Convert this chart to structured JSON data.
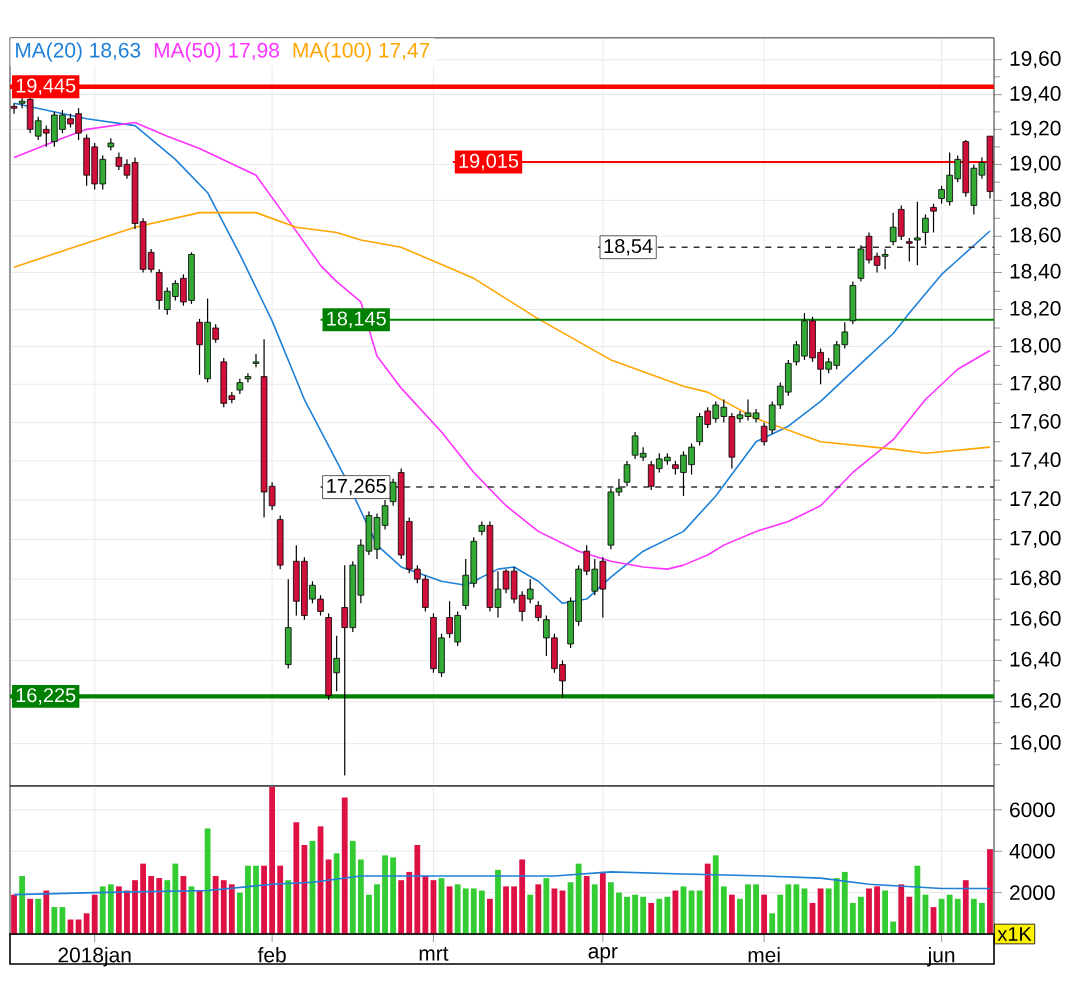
{
  "chart_data": [
    {
      "type": "candlestick",
      "categories": [
        null,
        null,
        null,
        null,
        null,
        null,
        null,
        null,
        null,
        null,
        null,
        null,
        null,
        null,
        null,
        null,
        null,
        null,
        null,
        null,
        null,
        null,
        null,
        null,
        null,
        null,
        null,
        null,
        null,
        null,
        null,
        null,
        null,
        null,
        null,
        null,
        null,
        null,
        null,
        null,
        null,
        null,
        null,
        null,
        null,
        null,
        null,
        null,
        null,
        null,
        null,
        null,
        null,
        null,
        null,
        null,
        null,
        null,
        null,
        null,
        null,
        null,
        null,
        null,
        null,
        null,
        null,
        null,
        null,
        null,
        null,
        null,
        null,
        null,
        null,
        null,
        null,
        null,
        null,
        null,
        null,
        null,
        null,
        null,
        null,
        null,
        null,
        null,
        null,
        null,
        null,
        null,
        null,
        null,
        null,
        null,
        null,
        null,
        null,
        null,
        null,
        null,
        null,
        null,
        null,
        null,
        null,
        null,
        null,
        null,
        null,
        null,
        null,
        null,
        null,
        null,
        null,
        null,
        null,
        null,
        null,
        null
      ],
      "ohlc": [
        [
          19.33,
          19.35,
          19.29,
          19.32
        ],
        [
          19.35,
          19.38,
          19.32,
          19.36
        ],
        [
          19.37,
          19.39,
          19.18,
          19.2
        ],
        [
          19.16,
          19.27,
          19.14,
          19.25
        ],
        [
          19.2,
          19.22,
          19.1,
          19.18
        ],
        [
          19.13,
          19.3,
          19.1,
          19.28
        ],
        [
          19.2,
          19.31,
          19.18,
          19.28
        ],
        [
          19.26,
          19.29,
          19.21,
          19.23
        ],
        [
          19.29,
          19.32,
          19.14,
          19.18
        ],
        [
          19.15,
          19.17,
          18.88,
          18.94
        ],
        [
          19.1,
          19.12,
          18.86,
          18.89
        ],
        [
          18.89,
          19.05,
          18.86,
          19.03
        ],
        [
          19.1,
          19.15,
          19.08,
          19.12
        ],
        [
          19.04,
          19.07,
          18.97,
          18.99
        ],
        [
          19.0,
          19.03,
          18.92,
          18.94
        ],
        [
          19.01,
          19.04,
          18.64,
          18.67
        ],
        [
          18.68,
          18.7,
          18.4,
          18.42
        ],
        [
          18.51,
          18.53,
          18.4,
          18.42
        ],
        [
          18.4,
          18.42,
          18.2,
          18.25
        ],
        [
          18.2,
          18.32,
          18.17,
          18.3
        ],
        [
          18.27,
          18.36,
          18.25,
          18.34
        ],
        [
          18.37,
          18.39,
          18.22,
          18.24
        ],
        [
          18.25,
          18.51,
          18.23,
          18.5
        ],
        [
          18.13,
          18.15,
          17.85,
          18.01
        ],
        [
          17.83,
          18.26,
          17.81,
          18.13
        ],
        [
          18.1,
          18.12,
          18.02,
          18.04
        ],
        [
          17.92,
          17.94,
          17.68,
          17.7
        ],
        [
          17.74,
          17.76,
          17.7,
          17.72
        ],
        [
          17.77,
          17.83,
          17.75,
          17.81
        ],
        [
          17.83,
          17.86,
          17.81,
          17.84
        ],
        [
          17.91,
          17.96,
          17.89,
          17.92
        ],
        [
          17.84,
          18.04,
          17.11,
          17.24
        ],
        [
          17.27,
          17.29,
          17.15,
          17.17
        ],
        [
          17.1,
          17.12,
          16.85,
          16.87
        ],
        [
          16.38,
          16.8,
          16.36,
          16.56
        ],
        [
          16.89,
          16.97,
          16.62,
          16.69
        ],
        [
          16.89,
          16.91,
          16.6,
          16.62
        ],
        [
          16.7,
          16.79,
          16.68,
          16.77
        ],
        [
          16.7,
          16.72,
          16.62,
          16.64
        ],
        [
          16.61,
          16.63,
          16.21,
          16.23
        ],
        [
          16.34,
          16.52,
          16.25,
          16.41
        ],
        [
          16.66,
          16.87,
          15.85,
          16.56
        ],
        [
          16.56,
          16.89,
          16.54,
          16.87
        ],
        [
          16.72,
          17.0,
          16.68,
          16.97
        ],
        [
          16.94,
          17.14,
          16.92,
          17.12
        ],
        [
          16.95,
          17.13,
          16.9,
          17.11
        ],
        [
          17.07,
          17.2,
          17.05,
          17.17
        ],
        [
          17.19,
          17.31,
          17.17,
          17.29
        ],
        [
          17.34,
          17.36,
          16.9,
          16.92
        ],
        [
          17.09,
          17.11,
          16.83,
          16.85
        ],
        [
          16.85,
          16.87,
          16.78,
          16.8
        ],
        [
          16.8,
          16.82,
          16.64,
          16.66
        ],
        [
          16.61,
          16.63,
          16.34,
          16.36
        ],
        [
          16.34,
          16.53,
          16.32,
          16.51
        ],
        [
          16.61,
          16.69,
          16.51,
          16.53
        ],
        [
          16.49,
          16.64,
          16.47,
          16.62
        ],
        [
          16.67,
          16.9,
          16.65,
          16.82
        ],
        [
          16.78,
          17.01,
          16.76,
          16.99
        ],
        [
          17.04,
          17.09,
          17.02,
          17.07
        ],
        [
          17.07,
          17.09,
          16.64,
          16.66
        ],
        [
          16.66,
          16.84,
          16.61,
          16.75
        ],
        [
          16.84,
          16.85,
          16.73,
          16.75
        ],
        [
          16.84,
          16.86,
          16.68,
          16.7
        ],
        [
          16.72,
          16.74,
          16.59,
          16.64
        ],
        [
          16.7,
          16.8,
          16.68,
          16.75
        ],
        [
          16.67,
          16.69,
          16.59,
          16.61
        ],
        [
          16.51,
          16.62,
          16.42,
          16.6
        ],
        [
          16.51,
          16.53,
          16.34,
          16.36
        ],
        [
          16.38,
          16.4,
          16.22,
          16.3
        ],
        [
          16.48,
          16.71,
          16.46,
          16.69
        ],
        [
          16.59,
          16.87,
          16.57,
          16.85
        ],
        [
          16.94,
          16.97,
          16.82,
          16.84
        ],
        [
          16.74,
          16.9,
          16.72,
          16.85
        ],
        [
          16.89,
          16.91,
          16.61,
          16.75
        ],
        [
          16.97,
          17.26,
          16.95,
          17.24
        ],
        [
          17.24,
          17.31,
          17.22,
          17.26
        ],
        [
          17.29,
          17.4,
          17.27,
          17.38
        ],
        [
          17.43,
          17.55,
          17.41,
          17.53
        ],
        [
          17.42,
          17.47,
          17.4,
          17.44
        ],
        [
          17.38,
          17.4,
          17.25,
          17.27
        ],
        [
          17.36,
          17.44,
          17.34,
          17.41
        ],
        [
          17.4,
          17.44,
          17.38,
          17.42
        ],
        [
          17.38,
          17.4,
          17.33,
          17.36
        ],
        [
          17.34,
          17.45,
          17.22,
          17.43
        ],
        [
          17.38,
          17.49,
          17.33,
          17.47
        ],
        [
          17.5,
          17.65,
          17.48,
          17.63
        ],
        [
          17.66,
          17.68,
          17.57,
          17.59
        ],
        [
          17.62,
          17.71,
          17.6,
          17.69
        ],
        [
          17.63,
          17.72,
          17.6,
          17.68
        ],
        [
          17.63,
          17.65,
          17.36,
          17.42
        ],
        [
          17.62,
          17.66,
          17.6,
          17.64
        ],
        [
          17.63,
          17.72,
          17.61,
          17.65
        ],
        [
          17.62,
          17.67,
          17.6,
          17.65
        ],
        [
          17.58,
          17.6,
          17.48,
          17.5
        ],
        [
          17.56,
          17.71,
          17.54,
          17.69
        ],
        [
          17.69,
          17.81,
          17.67,
          17.79
        ],
        [
          17.76,
          17.93,
          17.74,
          17.91
        ],
        [
          17.92,
          18.03,
          17.9,
          18.01
        ],
        [
          17.95,
          18.18,
          17.93,
          18.14
        ],
        [
          18.14,
          18.16,
          17.92,
          17.94
        ],
        [
          17.97,
          17.99,
          17.8,
          17.88
        ],
        [
          17.88,
          17.94,
          17.86,
          17.92
        ],
        [
          17.9,
          18.03,
          17.88,
          18.01
        ],
        [
          18.01,
          18.13,
          17.99,
          18.08
        ],
        [
          18.14,
          18.35,
          18.12,
          18.33
        ],
        [
          18.37,
          18.55,
          18.35,
          18.53
        ],
        [
          18.6,
          18.62,
          18.45,
          18.47
        ],
        [
          18.49,
          18.51,
          18.4,
          18.44
        ],
        [
          18.49,
          18.53,
          18.42,
          18.5
        ],
        [
          18.57,
          18.73,
          18.55,
          18.65
        ],
        [
          18.75,
          18.77,
          18.58,
          18.6
        ],
        [
          18.57,
          18.59,
          18.46,
          18.56
        ],
        [
          18.58,
          18.79,
          18.44,
          18.59
        ],
        [
          18.62,
          18.72,
          18.55,
          18.7
        ],
        [
          18.76,
          18.78,
          18.62,
          18.74
        ],
        [
          18.81,
          18.88,
          18.78,
          18.86
        ],
        [
          18.79,
          19.07,
          18.77,
          18.94
        ],
        [
          18.92,
          19.05,
          18.9,
          19.03
        ],
        [
          19.13,
          19.14,
          18.82,
          18.84
        ],
        [
          18.77,
          19.0,
          18.72,
          18.98
        ],
        [
          18.94,
          19.04,
          18.92,
          19.01
        ],
        [
          19.16,
          19.16,
          18.81,
          18.85
        ]
      ],
      "series": [
        {
          "name": "MA(20) 18,63",
          "type": "line",
          "color": "#1f80d8",
          "values": [
            19.35,
            null,
            null,
            null,
            null,
            null,
            null,
            null,
            null,
            19.26,
            null,
            null,
            null,
            null,
            null,
            19.22,
            null,
            null,
            null,
            null,
            19.03,
            null,
            null,
            null,
            18.84,
            null,
            null,
            null,
            18.5,
            null,
            null,
            null,
            18.14,
            null,
            null,
            null,
            17.72,
            null,
            null,
            null,
            null,
            17.32,
            null,
            null,
            null,
            16.97,
            null,
            null,
            16.86,
            null,
            null,
            null,
            null,
            16.79,
            null,
            null,
            16.77,
            null,
            null,
            null,
            16.85,
            null,
            16.86,
            null,
            null,
            16.79,
            null,
            null,
            16.68,
            null,
            null,
            16.7,
            null,
            null,
            16.81,
            null,
            null,
            null,
            16.94,
            null,
            null,
            null,
            null,
            17.04,
            null,
            null,
            null,
            17.22,
            null,
            null,
            null,
            null,
            17.5,
            null,
            null,
            null,
            17.58,
            null,
            null,
            null,
            17.71,
            null,
            null,
            null,
            17.87,
            null,
            null,
            null,
            null,
            18.07,
            null,
            18.18,
            null,
            null,
            null,
            18.39,
            null,
            18.47,
            null,
            null,
            null,
            18.63
          ]
        },
        {
          "name": "MA(50) 17,98",
          "type": "line",
          "color": "#ff33ff",
          "values": [
            19.04,
            null,
            null,
            null,
            null,
            null,
            19.15,
            null,
            null,
            19.2,
            null,
            null,
            null,
            null,
            null,
            19.24,
            null,
            null,
            null,
            19.16,
            null,
            null,
            null,
            19.09,
            null,
            null,
            null,
            null,
            null,
            null,
            18.94,
            null,
            null,
            null,
            18.69,
            null,
            null,
            null,
            18.44,
            null,
            18.35,
            null,
            null,
            18.24,
            null,
            17.95,
            null,
            null,
            17.78,
            null,
            null,
            null,
            null,
            17.55,
            null,
            null,
            null,
            17.34,
            null,
            null,
            null,
            17.17,
            null,
            null,
            null,
            17.04,
            null,
            null,
            null,
            null,
            16.94,
            null,
            null,
            null,
            16.89,
            null,
            null,
            null,
            16.86,
            null,
            null,
            16.85,
            null,
            16.87,
            null,
            null,
            16.92,
            null,
            16.97,
            null,
            null,
            null,
            17.04,
            null,
            null,
            null,
            17.09,
            null,
            null,
            null,
            17.17,
            null,
            null,
            null,
            17.34,
            null,
            null,
            null,
            null,
            17.51,
            null,
            null,
            null,
            17.72,
            null,
            null,
            null,
            17.88,
            null,
            null,
            null,
            17.98
          ]
        },
        {
          "name": "MA(100) 17,47",
          "type": "line",
          "color": "#ffa500",
          "values": [
            18.43,
            null,
            null,
            null,
            null,
            null,
            18.52,
            null,
            null,
            null,
            null,
            null,
            null,
            null,
            null,
            18.65,
            null,
            null,
            null,
            null,
            null,
            null,
            null,
            18.73,
            null,
            null,
            null,
            null,
            null,
            null,
            18.73,
            null,
            null,
            null,
            null,
            18.65,
            null,
            null,
            null,
            null,
            18.62,
            null,
            null,
            18.58,
            null,
            null,
            null,
            null,
            18.54,
            null,
            null,
            null,
            null,
            null,
            null,
            null,
            null,
            18.37,
            null,
            null,
            null,
            null,
            null,
            null,
            null,
            18.15,
            null,
            null,
            null,
            null,
            null,
            null,
            null,
            null,
            17.93,
            null,
            null,
            null,
            null,
            null,
            null,
            null,
            null,
            17.79,
            null,
            null,
            17.76,
            null,
            null,
            null,
            null,
            null,
            17.62,
            null,
            null,
            null,
            null,
            null,
            null,
            null,
            17.5,
            null,
            null,
            null,
            null,
            null,
            null,
            null,
            null,
            17.46,
            null,
            null,
            null,
            17.44,
            null,
            null,
            null,
            null,
            null,
            null,
            null,
            17.47
          ]
        }
      ],
      "ref_lines": [
        {
          "axis": "y",
          "value": 19.445,
          "label": "19,445",
          "color": "#ff0000",
          "line_style": "solid"
        },
        {
          "axis": "y",
          "value": 19.015,
          "label": "19,015",
          "color": "#ff0000",
          "line_style": "solid"
        },
        {
          "axis": "y",
          "value": 18.54,
          "label": "18,54",
          "color": "#333333",
          "line_style": "dashed"
        },
        {
          "axis": "y",
          "value": 18.145,
          "label": "18,145",
          "color": "#008000",
          "line_style": "solid"
        },
        {
          "axis": "y",
          "value": 17.265,
          "label": "17,265",
          "color": "#333333",
          "line_style": "dashed"
        },
        {
          "axis": "y",
          "value": 16.225,
          "label": "16,225",
          "color": "#008000",
          "line_style": "solid"
        }
      ],
      "ylim": [
        15.8,
        19.73
      ],
      "yticks": [
        {
          "value": 15.9,
          "label": null
        },
        {
          "value": 16.0,
          "label": "16,00"
        },
        {
          "value": 16.1,
          "label": null
        },
        {
          "value": 16.2,
          "label": "16,20"
        },
        {
          "value": 16.3,
          "label": null
        },
        {
          "value": 16.4,
          "label": "16,40"
        },
        {
          "value": 16.5,
          "label": null
        },
        {
          "value": 16.6,
          "label": "16,60"
        },
        {
          "value": 16.7,
          "label": null
        },
        {
          "value": 16.8,
          "label": "16,80"
        },
        {
          "value": 16.9,
          "label": null
        },
        {
          "value": 17.0,
          "label": "17,00"
        },
        {
          "value": 17.1,
          "label": null
        },
        {
          "value": 17.2,
          "label": "17,20"
        },
        {
          "value": 17.3,
          "label": null
        },
        {
          "value": 17.4,
          "label": "17,40"
        },
        {
          "value": 17.5,
          "label": null
        },
        {
          "value": 17.6,
          "label": "17,60"
        },
        {
          "value": 17.7,
          "label": null
        },
        {
          "value": 17.8,
          "label": "17,80"
        },
        {
          "value": 17.9,
          "label": null
        },
        {
          "value": 18.0,
          "label": "18,00"
        },
        {
          "value": 18.1,
          "label": null
        },
        {
          "value": 18.2,
          "label": "18,20"
        },
        {
          "value": 18.3,
          "label": null
        },
        {
          "value": 18.4,
          "label": "18,40"
        },
        {
          "value": 18.5,
          "label": null
        },
        {
          "value": 18.6,
          "label": "18,60"
        },
        {
          "value": 18.7,
          "label": null
        },
        {
          "value": 18.8,
          "label": "18,80"
        },
        {
          "value": 18.9,
          "label": null
        },
        {
          "value": 19.0,
          "label": "19,00"
        },
        {
          "value": 19.1,
          "label": null
        },
        {
          "value": 19.2,
          "label": "19,20"
        },
        {
          "value": 19.3,
          "label": null
        },
        {
          "value": 19.4,
          "label": "19,40"
        },
        {
          "value": 19.5,
          "label": null
        },
        {
          "value": 19.6,
          "label": "19,60"
        }
      ],
      "log": true,
      "grid": true,
      "legend": "top left",
      "tick_labels": "y"
    },
    {
      "type": "bar",
      "categories": [
        null,
        null,
        null,
        null,
        null,
        null,
        null,
        null,
        null,
        null,
        "2018jan",
        null,
        null,
        null,
        null,
        null,
        null,
        null,
        null,
        null,
        null,
        null,
        null,
        null,
        null,
        null,
        null,
        null,
        null,
        null,
        null,
        null,
        "feb",
        null,
        null,
        null,
        null,
        null,
        null,
        null,
        null,
        null,
        null,
        null,
        null,
        null,
        null,
        null,
        null,
        null,
        null,
        null,
        "mrt",
        null,
        null,
        null,
        null,
        null,
        null,
        null,
        null,
        null,
        null,
        null,
        null,
        null,
        null,
        null,
        null,
        null,
        null,
        null,
        null,
        "apr",
        null,
        null,
        null,
        null,
        null,
        null,
        null,
        null,
        null,
        null,
        null,
        null,
        null,
        null,
        null,
        null,
        null,
        null,
        null,
        "mei",
        null,
        null,
        null,
        null,
        null,
        null,
        null,
        null,
        null,
        null,
        null,
        null,
        null,
        null,
        null,
        null,
        null,
        null,
        null,
        null,
        null,
        "jun",
        null,
        null,
        null,
        null,
        null,
        null
      ],
      "series": [
        {
          "type": "bar",
          "values": [
            1900,
            2800,
            1700,
            1700,
            2100,
            1300,
            1300,
            700,
            700,
            1000,
            1900,
            2300,
            2400,
            2300,
            2100,
            2600,
            3400,
            2800,
            2700,
            2600,
            3400,
            2800,
            2300,
            2100,
            5100,
            2800,
            2600,
            2400,
            2000,
            3300,
            3300,
            3300,
            7100,
            3300,
            2600,
            5400,
            4300,
            4500,
            5200,
            3600,
            3900,
            6600,
            4500,
            3600,
            1900,
            2400,
            3800,
            3700,
            2600,
            3000,
            4300,
            2800,
            2600,
            2700,
            2300,
            2400,
            2200,
            2200,
            2100,
            1700,
            3100,
            2300,
            2300,
            3600,
            1900,
            2400,
            2700,
            2200,
            2100,
            2500,
            3400,
            2800,
            2400,
            3000,
            2500,
            2000,
            1800,
            1900,
            1800,
            1500,
            1700,
            1800,
            2100,
            2300,
            2100,
            2100,
            3400,
            3800,
            2300,
            1900,
            1700,
            2400,
            2400,
            1900,
            1000,
            1900,
            2400,
            2400,
            2200,
            1500,
            2200,
            2200,
            2700,
            3000,
            1500,
            1800,
            2200,
            2300,
            2100,
            600,
            2400,
            1800,
            3300,
            1900,
            1300,
            1700,
            1900,
            1700,
            2600,
            1700,
            1500,
            4100
          ],
          "colors": [
            "#dd1144",
            "#33cc33",
            "#dd1144",
            "#33cc33",
            "#dd1144",
            "#33cc33",
            "#33cc33",
            "#dd1144",
            "#dd1144",
            "#dd1144",
            "#dd1144",
            "#33cc33",
            "#33cc33",
            "#dd1144",
            "#dd1144",
            "#dd1144",
            "#dd1144",
            "#dd1144",
            "#dd1144",
            "#33cc33",
            "#33cc33",
            "#dd1144",
            "#33cc33",
            "#dd1144",
            "#33cc33",
            "#dd1144",
            "#dd1144",
            "#dd1144",
            "#33cc33",
            "#33cc33",
            "#33cc33",
            "#dd1144",
            "#dd1144",
            "#dd1144",
            "#33cc33",
            "#dd1144",
            "#dd1144",
            "#33cc33",
            "#dd1144",
            "#dd1144",
            "#33cc33",
            "#dd1144",
            "#33cc33",
            "#33cc33",
            "#33cc33",
            "#33cc33",
            "#33cc33",
            "#33cc33",
            "#dd1144",
            "#dd1144",
            "#dd1144",
            "#dd1144",
            "#dd1144",
            "#33cc33",
            "#dd1144",
            "#33cc33",
            "#33cc33",
            "#33cc33",
            "#33cc33",
            "#dd1144",
            "#33cc33",
            "#dd1144",
            "#dd1144",
            "#dd1144",
            "#33cc33",
            "#dd1144",
            "#33cc33",
            "#dd1144",
            "#dd1144",
            "#33cc33",
            "#33cc33",
            "#dd1144",
            "#33cc33",
            "#dd1144",
            "#33cc33",
            "#33cc33",
            "#33cc33",
            "#33cc33",
            "#33cc33",
            "#dd1144",
            "#33cc33",
            "#33cc33",
            "#dd1144",
            "#33cc33",
            "#33cc33",
            "#33cc33",
            "#dd1144",
            "#33cc33",
            "#33cc33",
            "#dd1144",
            "#33cc33",
            "#33cc33",
            "#33cc33",
            "#dd1144",
            "#33cc33",
            "#33cc33",
            "#33cc33",
            "#33cc33",
            "#33cc33",
            "#dd1144",
            "#dd1144",
            "#33cc33",
            "#33cc33",
            "#33cc33",
            "#33cc33",
            "#33cc33",
            "#dd1144",
            "#dd1144",
            "#33cc33",
            "#33cc33",
            "#dd1144",
            "#dd1144",
            "#33cc33",
            "#33cc33",
            "#dd1144",
            "#33cc33",
            "#33cc33",
            "#33cc33",
            "#dd1144",
            "#33cc33",
            "#33cc33",
            "#dd1144"
          ]
        },
        {
          "type": "line",
          "color": "#1f80d8",
          "values": [
            1900,
            null,
            null,
            null,
            null,
            null,
            null,
            null,
            null,
            null,
            2000,
            null,
            null,
            null,
            null,
            null,
            null,
            null,
            null,
            null,
            null,
            null,
            null,
            null,
            2100,
            null,
            null,
            null,
            null,
            null,
            null,
            null,
            2400,
            null,
            null,
            null,
            null,
            2500,
            null,
            null,
            null,
            null,
            null,
            2800,
            null,
            null,
            null,
            null,
            null,
            null,
            2800,
            null,
            null,
            null,
            null,
            null,
            null,
            null,
            null,
            null,
            null,
            null,
            null,
            null,
            null,
            null,
            null,
            2800,
            null,
            null,
            null,
            null,
            null,
            null,
            3000,
            null,
            null,
            null,
            null,
            null,
            null,
            null,
            null,
            2900,
            null,
            null,
            null,
            null,
            null,
            null,
            null,
            null,
            null,
            2800,
            null,
            null,
            null,
            null,
            null,
            null,
            2700,
            null,
            null,
            null,
            null,
            null,
            2400,
            null,
            null,
            null,
            null,
            null,
            null,
            null,
            null,
            2200,
            null,
            null,
            null,
            null,
            null,
            2200
          ]
        }
      ],
      "ylim": [
        0,
        7150
      ],
      "yticks": [
        2000,
        4000,
        6000
      ],
      "grid": true,
      "ylabel": "x1K"
    }
  ]
}
